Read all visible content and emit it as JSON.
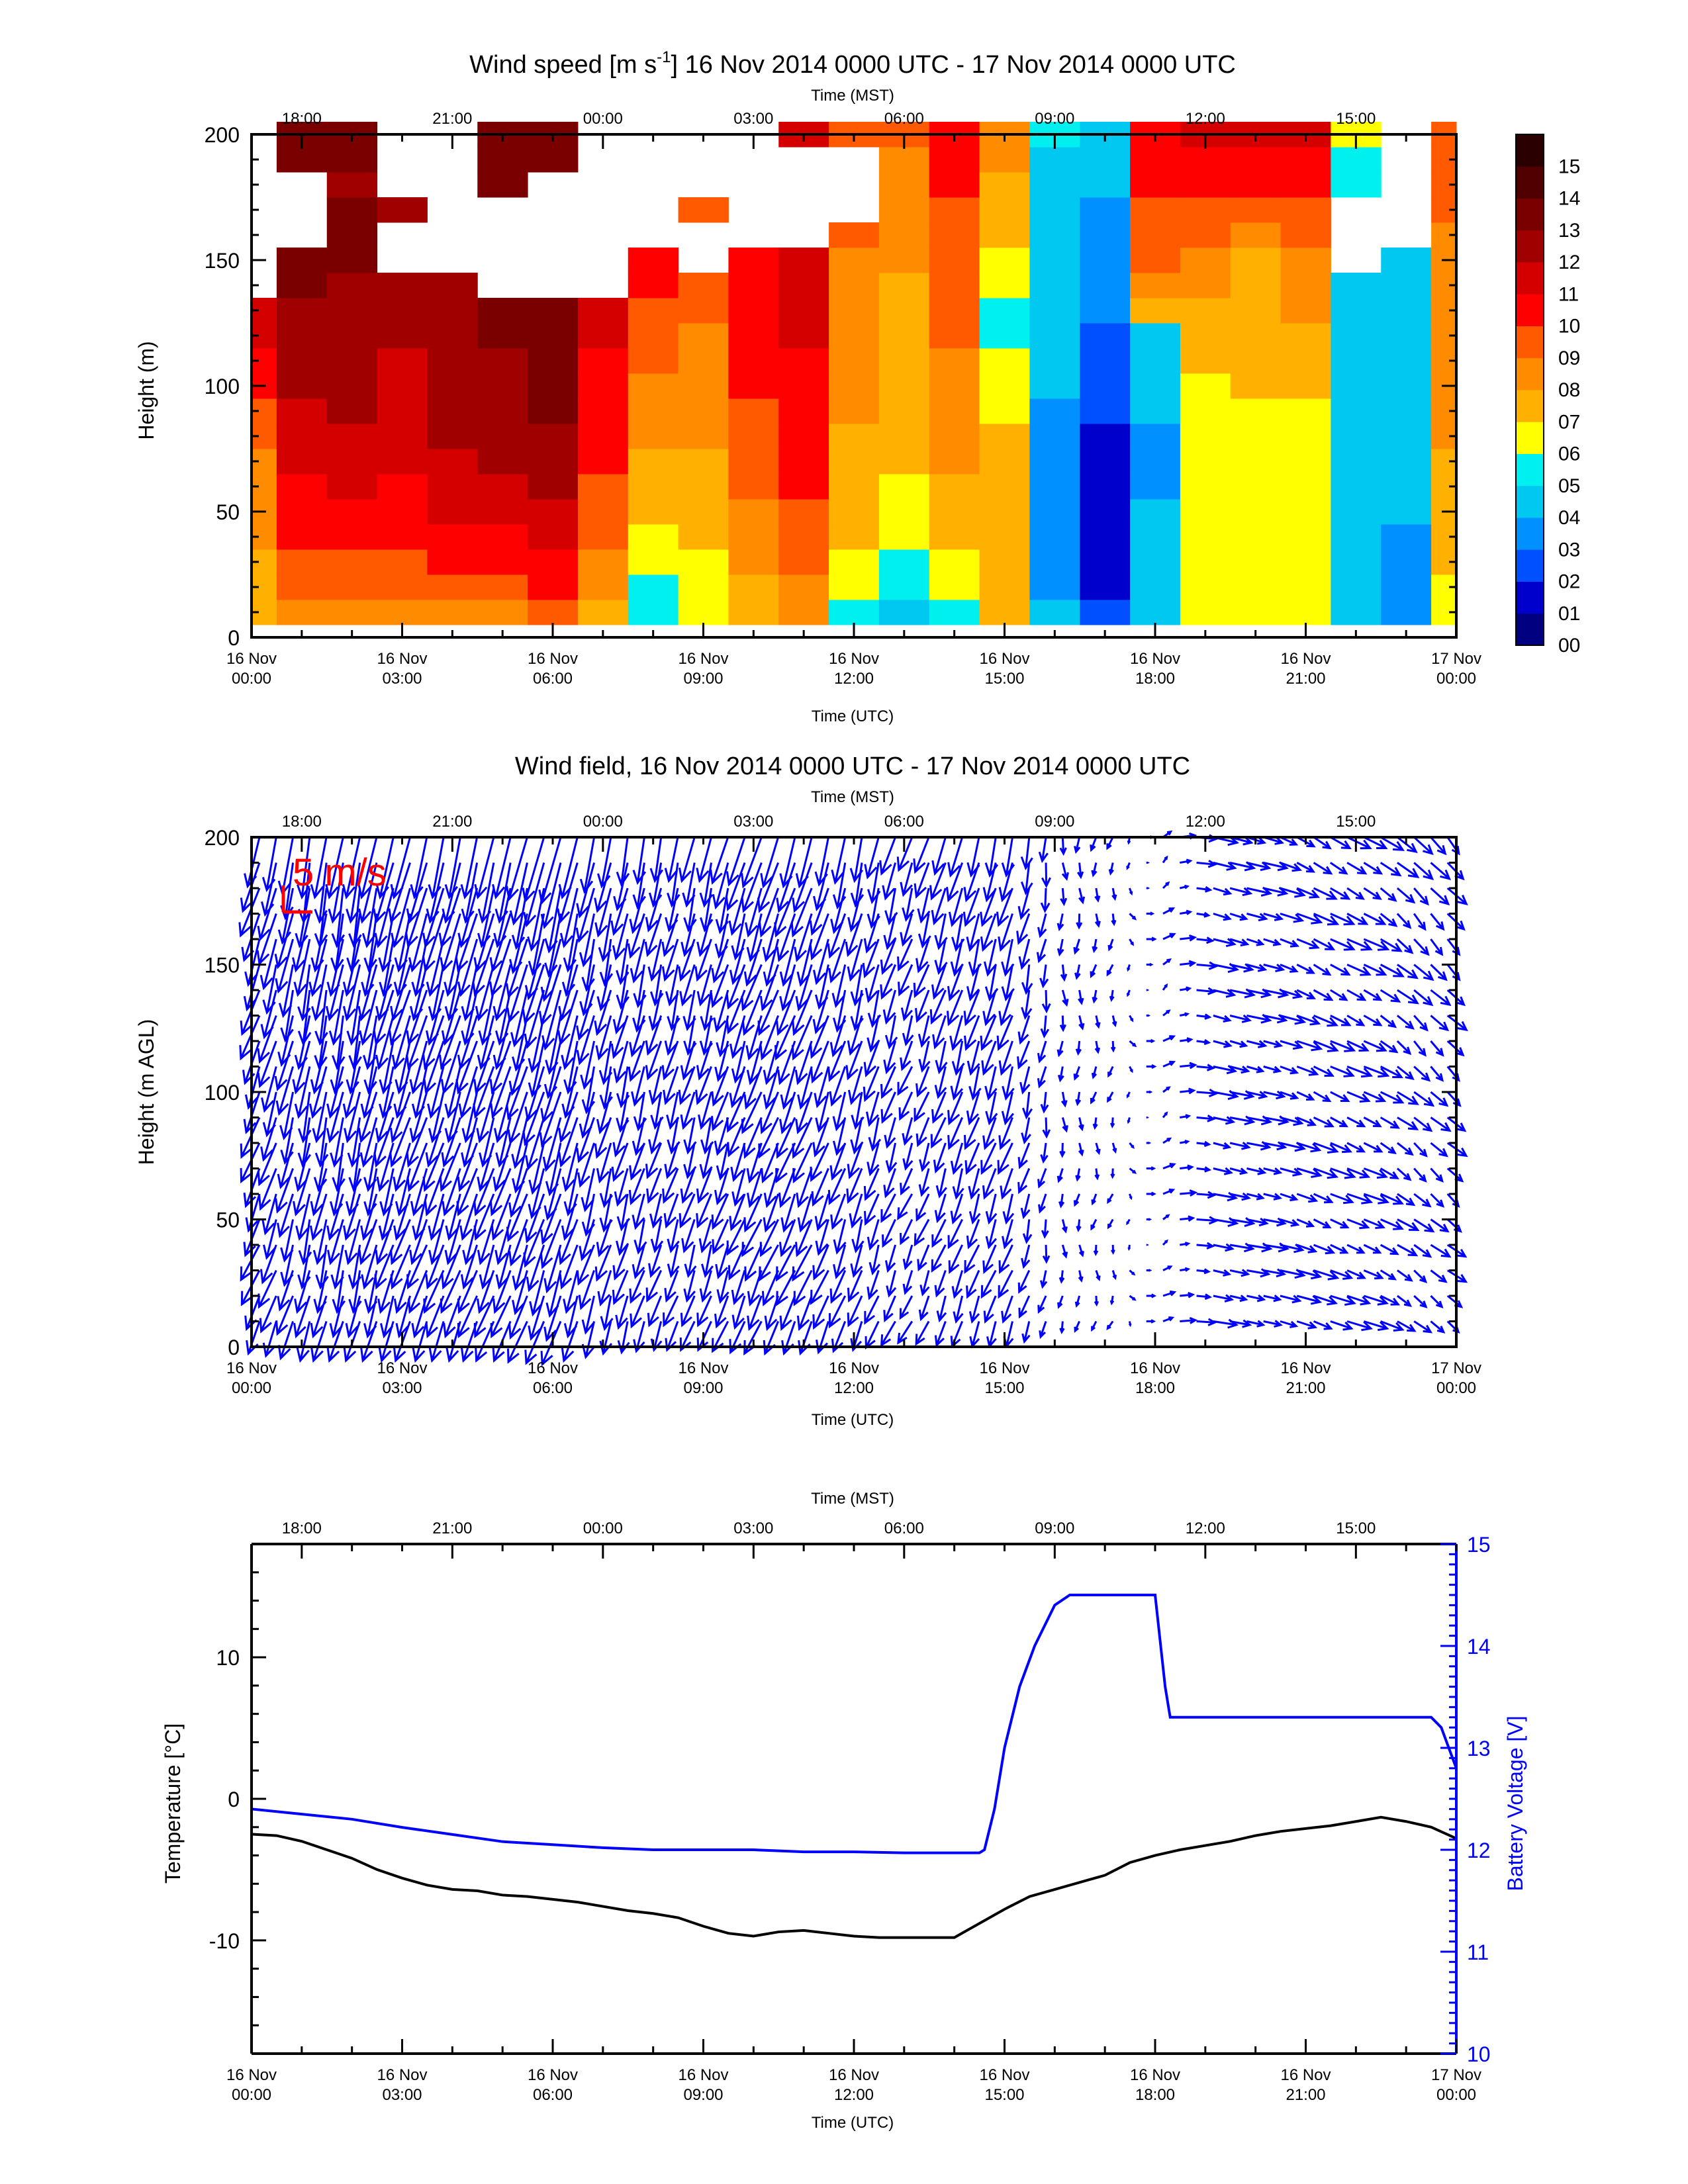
{
  "colors": {
    "blue_series": "#0000ff",
    "scale_arrow": "#ff0000",
    "axis": "#000000"
  },
  "chart_data": [
    {
      "type": "heatmap",
      "title": "Wind speed [m s",
      "title_sup": "-1",
      "title_rest": "] 16 Nov 2014 0000 UTC - 17 Nov 2014 0000 UTC",
      "ylabel": "Height (m)",
      "ylim": [
        0,
        200
      ],
      "yticks": [
        "0",
        "50",
        "100",
        "150",
        "200"
      ],
      "xlabel_bottom": "Time (UTC)",
      "xlabel_top": "Time (MST)",
      "xlim_hours_utc": [
        0,
        24
      ],
      "colorbar": {
        "labels": [
          "00",
          "01",
          "02",
          "03",
          "04",
          "05",
          "06",
          "07",
          "08",
          "09",
          "10",
          "11",
          "12",
          "13",
          "14",
          "15"
        ],
        "colors": [
          "#000080",
          "#0000cc",
          "#0050ff",
          "#0090ff",
          "#00c8f0",
          "#00f0f0",
          "#ffff00",
          "#ffb000",
          "#ff8c00",
          "#ff5a00",
          "#ff0000",
          "#d40000",
          "#a00000",
          "#7a0000",
          "#500000",
          "#2a0000"
        ]
      },
      "profile_heights_m": [
        10,
        20,
        30,
        40,
        50,
        60,
        70,
        80,
        90,
        100,
        110,
        120,
        130,
        140,
        150,
        160,
        170,
        180,
        190,
        200
      ],
      "hourly_profiles_ms": [
        [
          7,
          7,
          7,
          8,
          8,
          8,
          8,
          9,
          9,
          10,
          10,
          11,
          11,
          -1,
          -1,
          -1,
          -1,
          -1,
          -1,
          -1
        ],
        [
          8,
          9,
          9,
          10,
          10,
          10,
          11,
          11,
          11,
          12,
          12,
          12,
          12,
          13,
          13,
          -1,
          -1,
          -1,
          13,
          13
        ],
        [
          8,
          9,
          9,
          10,
          10,
          11,
          11,
          11,
          12,
          12,
          12,
          12,
          12,
          12,
          13,
          13,
          13,
          12,
          13,
          13
        ],
        [
          8,
          9,
          9,
          10,
          10,
          10,
          11,
          11,
          11,
          11,
          11,
          12,
          12,
          12,
          -1,
          -1,
          12,
          -1,
          -1,
          -1
        ],
        [
          8,
          9,
          10,
          10,
          11,
          11,
          11,
          12,
          12,
          12,
          12,
          12,
          12,
          12,
          -1,
          -1,
          -1,
          -1,
          -1,
          -1
        ],
        [
          8,
          9,
          10,
          10,
          11,
          11,
          12,
          12,
          12,
          12,
          12,
          13,
          13,
          -1,
          -1,
          -1,
          -1,
          13,
          13,
          13
        ],
        [
          9,
          10,
          10,
          11,
          11,
          12,
          12,
          12,
          13,
          13,
          13,
          13,
          13,
          -1,
          -1,
          -1,
          -1,
          -1,
          13,
          13
        ],
        [
          7,
          8,
          8,
          9,
          9,
          9,
          10,
          10,
          10,
          10,
          10,
          11,
          11,
          -1,
          -1,
          -1,
          -1,
          -1,
          -1,
          -1
        ],
        [
          5,
          5,
          6,
          6,
          7,
          7,
          7,
          8,
          8,
          8,
          9,
          9,
          9,
          10,
          10,
          -1,
          -1,
          -1,
          -1,
          -1
        ],
        [
          6,
          6,
          6,
          7,
          7,
          7,
          7,
          8,
          8,
          8,
          8,
          8,
          9,
          9,
          -1,
          -1,
          9,
          -1,
          -1,
          -1
        ],
        [
          7,
          7,
          8,
          8,
          8,
          9,
          9,
          9,
          9,
          10,
          10,
          10,
          10,
          10,
          10,
          -1,
          -1,
          -1,
          -1,
          -1
        ],
        [
          8,
          8,
          9,
          9,
          9,
          10,
          10,
          10,
          10,
          10,
          10,
          11,
          11,
          11,
          11,
          -1,
          -1,
          -1,
          -1,
          11
        ],
        [
          5,
          6,
          6,
          7,
          7,
          7,
          7,
          7,
          8,
          8,
          8,
          8,
          8,
          8,
          8,
          9,
          -1,
          -1,
          -1,
          9
        ],
        [
          4,
          5,
          5,
          6,
          6,
          6,
          7,
          7,
          7,
          7,
          7,
          7,
          7,
          7,
          8,
          8,
          8,
          8,
          8,
          9
        ],
        [
          5,
          6,
          6,
          7,
          7,
          7,
          8,
          8,
          8,
          8,
          8,
          9,
          9,
          9,
          9,
          9,
          9,
          10,
          10,
          10
        ],
        [
          7,
          7,
          7,
          7,
          7,
          7,
          7,
          7,
          6,
          6,
          6,
          5,
          5,
          6,
          6,
          7,
          7,
          7,
          8,
          8
        ],
        [
          4,
          3,
          3,
          3,
          3,
          3,
          3,
          3,
          3,
          4,
          4,
          4,
          4,
          4,
          4,
          4,
          4,
          4,
          4,
          5
        ],
        [
          2,
          1,
          1,
          1,
          1,
          1,
          1,
          1,
          2,
          2,
          2,
          2,
          3,
          3,
          3,
          3,
          3,
          4,
          4,
          4
        ],
        [
          4,
          4,
          4,
          4,
          4,
          3,
          3,
          3,
          4,
          4,
          4,
          4,
          7,
          8,
          9,
          9,
          9,
          10,
          10,
          10
        ],
        [
          6,
          6,
          6,
          6,
          6,
          6,
          6,
          6,
          6,
          6,
          7,
          7,
          7,
          8,
          8,
          9,
          9,
          10,
          10,
          11
        ],
        [
          6,
          6,
          6,
          6,
          6,
          6,
          6,
          6,
          6,
          7,
          7,
          7,
          7,
          7,
          7,
          8,
          9,
          10,
          10,
          11
        ],
        [
          6,
          6,
          6,
          6,
          6,
          6,
          6,
          6,
          6,
          7,
          7,
          7,
          8,
          8,
          8,
          9,
          9,
          10,
          10,
          11
        ],
        [
          4,
          4,
          4,
          4,
          4,
          4,
          4,
          4,
          4,
          4,
          4,
          4,
          4,
          4,
          -1,
          -1,
          -1,
          5,
          5,
          6
        ],
        [
          3,
          3,
          3,
          3,
          4,
          4,
          4,
          4,
          4,
          4,
          4,
          4,
          4,
          4,
          4,
          -1,
          -1,
          -1,
          -1,
          -1
        ],
        [
          6,
          6,
          7,
          7,
          7,
          7,
          7,
          8,
          8,
          8,
          8,
          8,
          8,
          8,
          8,
          8,
          9,
          9,
          9,
          9
        ]
      ]
    },
    {
      "type": "vector",
      "title": "Wind field, 16 Nov 2014 0000 UTC - 17 Nov 2014 0000 UTC",
      "ylabel": "Height (m AGL)",
      "ylim": [
        0,
        200
      ],
      "yticks": [
        "0",
        "50",
        "100",
        "150",
        "200"
      ],
      "xlabel_bottom": "Time (UTC)",
      "xlabel_top": "Time (MST)",
      "scale_label": "5 m/s",
      "hours_utc": [
        0,
        1,
        2,
        3,
        4,
        5,
        6,
        7,
        8,
        9,
        10,
        11,
        12,
        13,
        14,
        15,
        16,
        17,
        18,
        19,
        20,
        21,
        22,
        23
      ],
      "u_ms": [
        -3,
        -2,
        -2,
        -3,
        -3,
        -3,
        -3,
        -2,
        -2,
        -2,
        -3,
        -3,
        -2,
        -2,
        -2,
        -2,
        0,
        -0.3,
        1.5,
        4,
        4,
        4,
        4,
        3
      ],
      "v_ms": [
        -9,
        -11,
        -11,
        -11,
        -11,
        -11,
        -12,
        -9,
        -8,
        -8,
        -9,
        -9,
        -8,
        -6,
        -7,
        -7,
        -3,
        -2,
        1,
        -1,
        -1,
        -2,
        -2,
        -3
      ]
    },
    {
      "type": "line",
      "ylabel": "Temperature [°C]",
      "ylim": [
        -18,
        18
      ],
      "yticks": [
        "-10",
        "0",
        "10"
      ],
      "y2label": "Battery Voltage [V]",
      "y2lim": [
        10,
        15
      ],
      "y2ticks": [
        "10",
        "11",
        "12",
        "13",
        "14",
        "15"
      ],
      "xlabel_bottom": "Time (UTC)",
      "xlabel_top": "Time (MST)",
      "series": [
        {
          "x_hours": [
            0,
            0.5,
            1,
            1.5,
            2,
            2.5,
            3,
            3.5,
            4,
            4.5,
            5,
            5.5,
            6,
            6.5,
            7,
            7.5,
            8,
            8.5,
            9,
            9.5,
            10,
            10.5,
            11,
            11.5,
            12,
            12.5,
            13,
            13.5,
            14,
            14.5,
            15,
            15.5,
            16,
            16.5,
            17,
            17.5,
            18,
            18.5,
            19,
            19.5,
            20,
            20.5,
            21,
            21.5,
            22,
            22.5,
            23,
            23.5,
            24
          ],
          "values": [
            -2.5,
            -2.6,
            -3,
            -3.6,
            -4.2,
            -5,
            -5.6,
            -6.1,
            -6.4,
            -6.5,
            -6.8,
            -6.9,
            -7.1,
            -7.3,
            -7.6,
            -7.9,
            -8.1,
            -8.4,
            -9,
            -9.5,
            -9.7,
            -9.4,
            -9.3,
            -9.5,
            -9.7,
            -9.8,
            -9.8,
            -9.8,
            -9.8,
            -8.8,
            -7.8,
            -6.9,
            -6.4,
            -5.9,
            -5.4,
            -4.5,
            -4,
            -3.6,
            -3.3,
            -3,
            -2.6,
            -2.3,
            -2.1,
            -1.9,
            -1.6,
            -1.3,
            -1.6,
            -2,
            -2.8
          ]
        },
        {
          "x_hours": [
            0,
            1,
            2,
            3,
            4,
            5,
            6,
            7,
            8,
            9,
            10,
            11,
            12,
            13,
            14,
            14.5,
            14.6,
            14.8,
            15,
            15.3,
            15.6,
            16,
            16.3,
            16.6,
            17,
            17.5,
            18,
            18.2,
            18.3,
            19,
            20,
            21,
            22,
            23,
            23.5,
            23.7,
            24
          ],
          "values": [
            12.4,
            12.35,
            12.3,
            12.22,
            12.15,
            12.08,
            12.05,
            12.02,
            12.0,
            12.0,
            12.0,
            11.98,
            11.98,
            11.97,
            11.97,
            11.97,
            12.0,
            12.4,
            13.0,
            13.6,
            14.0,
            14.4,
            14.5,
            14.5,
            14.5,
            14.5,
            14.5,
            13.6,
            13.3,
            13.3,
            13.3,
            13.3,
            13.3,
            13.3,
            13.3,
            13.2,
            12.8
          ]
        }
      ]
    }
  ],
  "axes": {
    "utc_tick_dates": [
      "16 Nov",
      "16 Nov",
      "16 Nov",
      "16 Nov",
      "16 Nov",
      "16 Nov",
      "16 Nov",
      "16 Nov",
      "17 Nov"
    ],
    "utc_tick_times": [
      "00:00",
      "03:00",
      "06:00",
      "09:00",
      "12:00",
      "15:00",
      "18:00",
      "21:00",
      "00:00"
    ],
    "mst_ticks": [
      "18:00",
      "21:00",
      "00:00",
      "03:00",
      "06:00",
      "09:00",
      "12:00",
      "15:00"
    ]
  }
}
